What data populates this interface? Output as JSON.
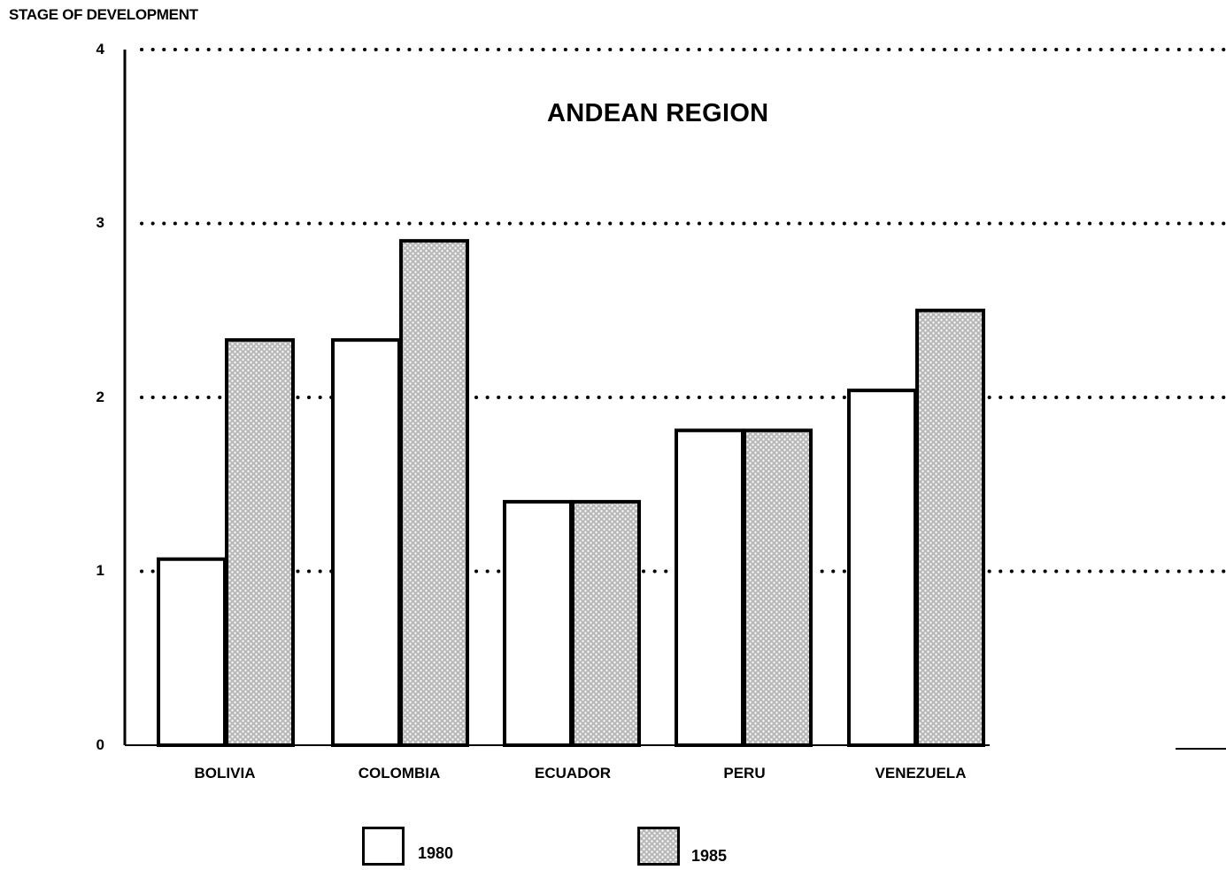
{
  "chart_data": {
    "type": "bar",
    "title": "ANDEAN REGION",
    "ylabel": "STAGE OF DEVELOPMENT",
    "xlabel": "",
    "ylim": [
      0,
      4
    ],
    "yticks": [
      "0",
      "1",
      "2",
      "3",
      "4"
    ],
    "grid": "dotted horizontal at 1, 2, 3, 4",
    "legend_placement": "bottom",
    "categories": [
      "BOLIVIA",
      "COLOMBIA",
      "ECUADOR",
      "PERU",
      "VENEZUELA"
    ],
    "series": [
      {
        "name": "1980",
        "values": [
          1.07,
          2.33,
          1.4,
          1.81,
          2.04
        ],
        "fill": "white"
      },
      {
        "name": "1985",
        "values": [
          2.33,
          2.9,
          1.4,
          1.81,
          2.5
        ],
        "fill": "stippled gray"
      }
    ]
  }
}
